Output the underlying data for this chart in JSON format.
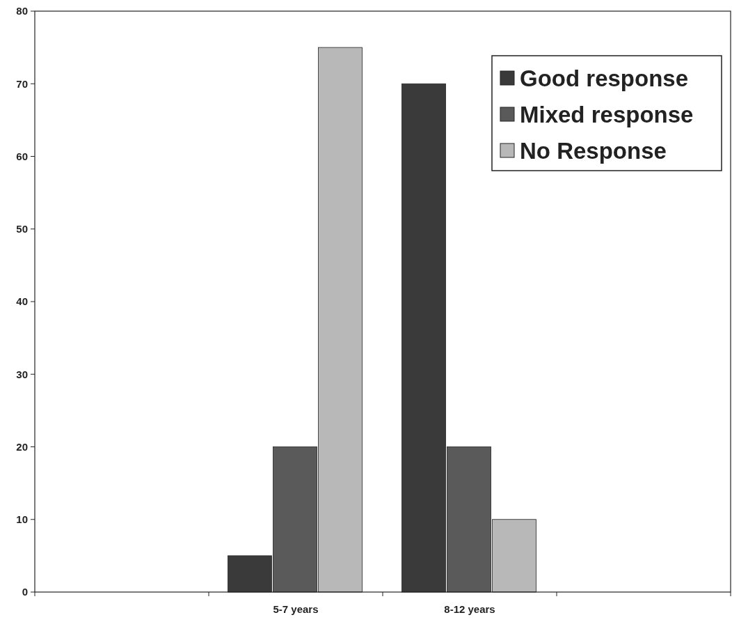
{
  "chart_data": {
    "type": "bar",
    "categories": [
      null,
      "5-7 years",
      "8-12 years",
      null
    ],
    "series": [
      {
        "name": "Good response",
        "color": "#3a3a3a",
        "values": [
          null,
          5,
          70,
          null
        ]
      },
      {
        "name": "Mixed response",
        "color": "#5a5a5a",
        "values": [
          null,
          20,
          20,
          null
        ]
      },
      {
        "name": "No Response",
        "color": "#b8b8b8",
        "values": [
          null,
          75,
          10,
          null
        ]
      }
    ],
    "ylim": [
      0,
      80
    ],
    "yticks": [
      0,
      10,
      20,
      30,
      40,
      50,
      60,
      70,
      80
    ],
    "grid": false,
    "legend": "top right"
  }
}
